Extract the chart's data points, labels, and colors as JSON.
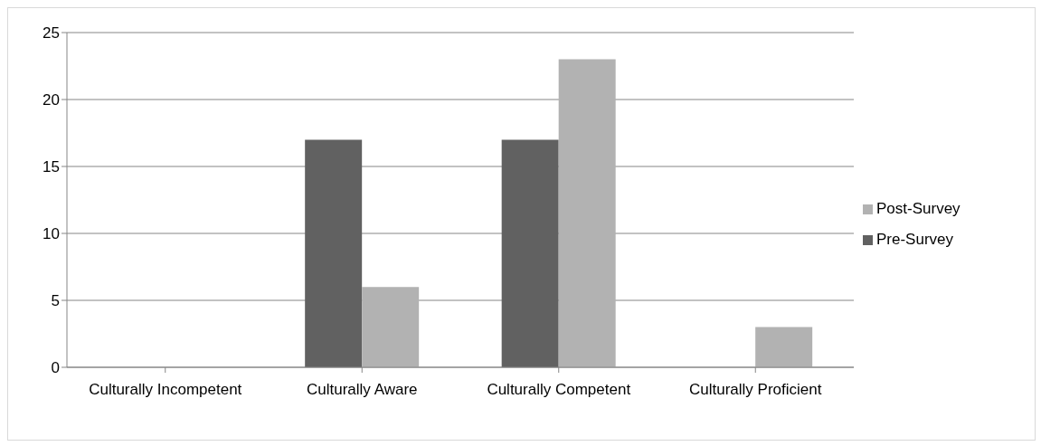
{
  "chart_data": {
    "type": "bar",
    "categories": [
      "Culturally Incompetent",
      "Culturally Aware",
      "Culturally Competent",
      "Culturally Proficient"
    ],
    "series": [
      {
        "name": "Pre-Survey",
        "color": "#616161",
        "values": [
          0,
          17,
          17,
          0
        ]
      },
      {
        "name": "Post-Survey",
        "color": "#b2b2b2",
        "values": [
          0,
          6,
          23,
          3
        ]
      }
    ],
    "ylim": [
      0,
      25
    ],
    "yticks": [
      0,
      5,
      10,
      15,
      20,
      25
    ],
    "grid": "y",
    "legend": "right"
  }
}
